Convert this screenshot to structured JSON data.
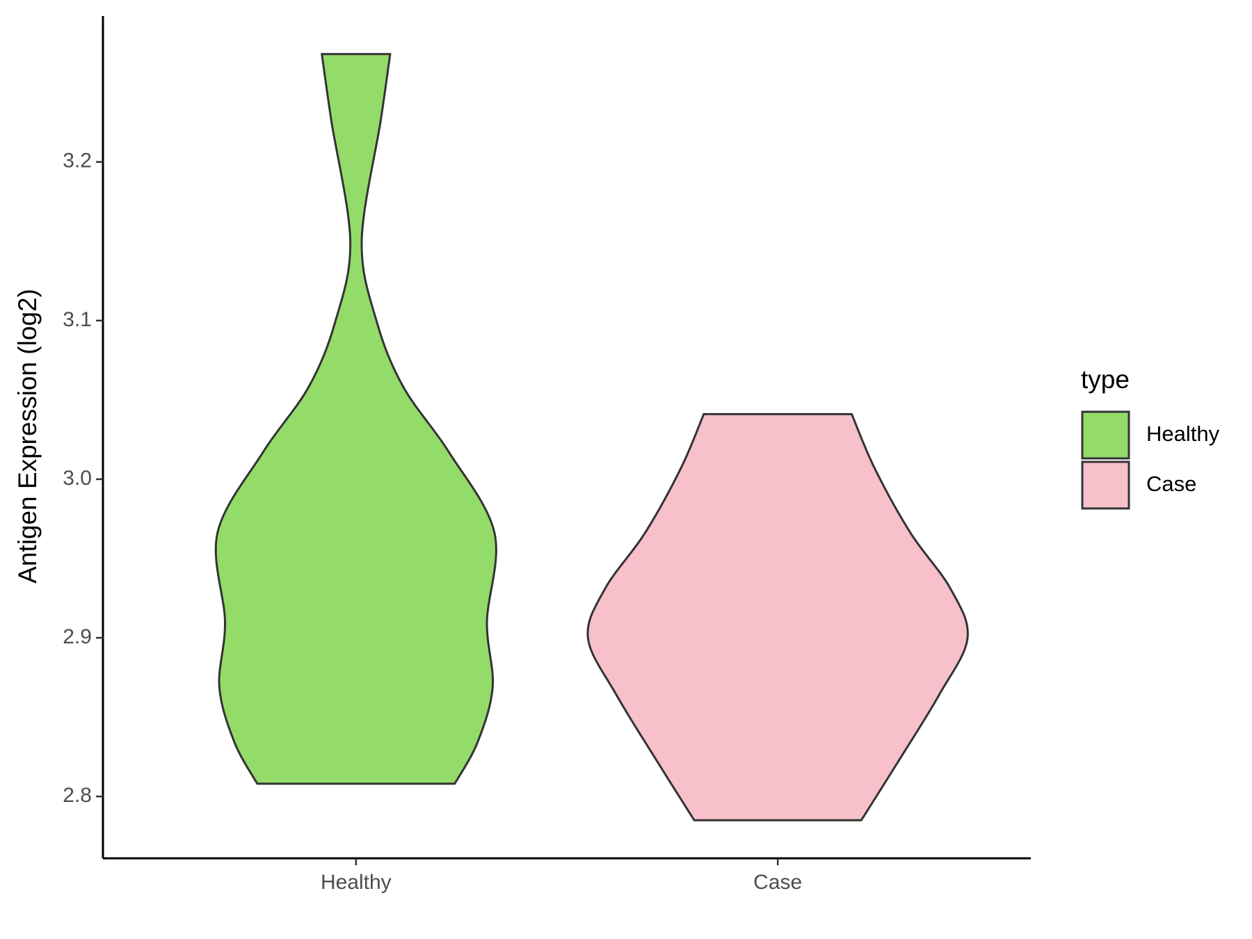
{
  "chart_data": {
    "type": "violin",
    "y_label": "Antigen Expression (log2)",
    "categories": [
      "Healthy",
      "Case"
    ],
    "legend_title": "type",
    "legend_position": "right",
    "series": [
      {
        "name": "Healthy",
        "color": "#93dc6a",
        "y": [
          3.268,
          3.226,
          3.15,
          3.099,
          3.058,
          3.017,
          2.966,
          2.91,
          2.869,
          2.834,
          2.808
        ],
        "widths": [
          0.18,
          0.13,
          0.03,
          0.11,
          0.25,
          0.49,
          0.73,
          0.69,
          0.72,
          0.64,
          0.52
        ]
      },
      {
        "name": "Case",
        "color": "#f7c0cb",
        "y": [
          3.041,
          3.007,
          2.966,
          2.931,
          2.9,
          2.864,
          2.823,
          2.785
        ],
        "widths": [
          0.39,
          0.51,
          0.7,
          0.91,
          1.0,
          0.85,
          0.64,
          0.44
        ]
      }
    ],
    "ylim": [
      2.761,
      3.292
    ],
    "yticks": [
      2.8,
      2.9,
      {
        "value": 3,
        "label": "3.0"
      },
      3.1,
      3.2
    ],
    "grid": false
  }
}
